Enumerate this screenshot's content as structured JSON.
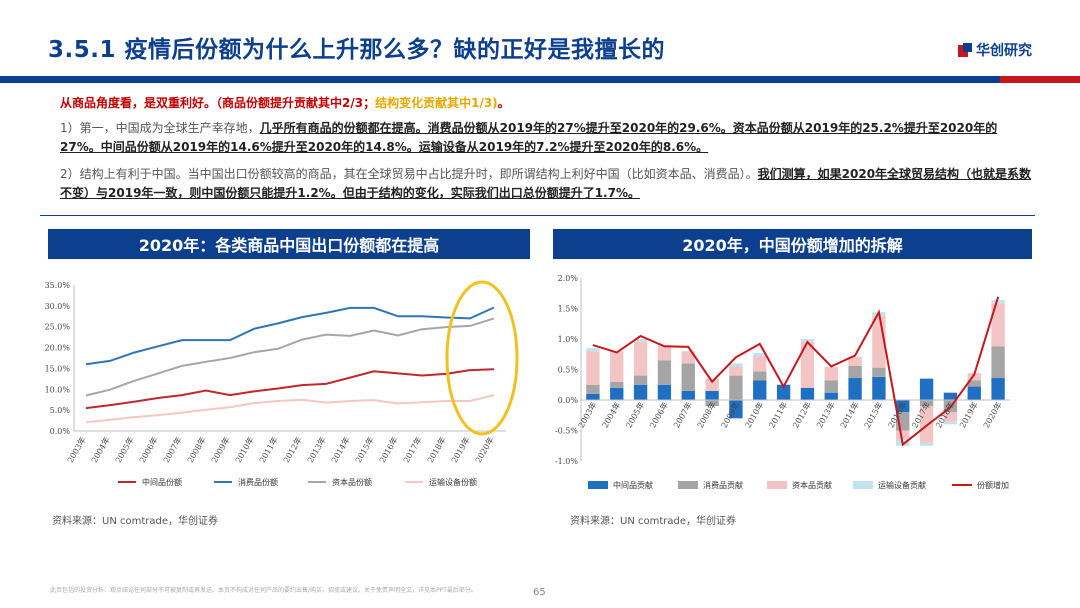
{
  "header": {
    "title": "3.5.1 疫情后份额为什么上升那么多？缺的正好是我擅长的",
    "logo_text": "华创研究"
  },
  "summary": {
    "lead": {
      "a": "从商品角度看，是双重利好。（商品份额提升贡献其中2/3；",
      "b": "结构变化贡献其中1/3)",
      "c": "。"
    },
    "para1": {
      "a": "1）第一，中国成为全球生产幸存地，",
      "b": "几乎所有商品的份额都在提高。消费品份额从2019年的27%提升至2020年的29.6%。资本品份额从2019年的25.2%提升至2020年的27%。中间品份额从2019年的14.6%提升至2020年的14.8%。运输设备从2019年的7.2%提升至2020年的8.6%。"
    },
    "para2": {
      "a": "2）结构上有利于中国。当中国出口份额较高的商品，其在全球贸易中占比提升时，即所谓结构上利好中国（比如资本品、消费品）。",
      "b": "我们测算，如果2020年全球贸易结构（",
      "c": "也就是系数不变",
      "d": "）与2019年一致，则中国份额只能提升1.2%。但由于结构的变化，实际我们出口总份额提升了1.7%。"
    }
  },
  "left_panel": {
    "title": "2020年：各类商品中国出口份额都在提高",
    "source": "资料来源：UN comtrade，华创证券"
  },
  "right_panel": {
    "title": "2020年，中国份额增加的拆解",
    "source": "资料来源：UN comtrade，华创证券"
  },
  "footer": {
    "disclaimer": "此页包括的投资分析、观点结论任何部分不可被复制或再发送。本页不构成对任何产品的要约出售/购买、招揽或建议。关于免责声明全文，详见本PPT最后部分。",
    "page": "65"
  },
  "colors": {
    "brand": "#0c3f8d",
    "red": "#c8161d",
    "gold": "#f2c01f",
    "line_mid": "#c0282d",
    "line_cons": "#2e75b6",
    "line_cap": "#a6a6a6",
    "line_trans": "#f4c7c3",
    "bar_mid": "#1f6fc2",
    "bar_cons": "#a5a5a5",
    "bar_cap": "#f3c4c4",
    "bar_trans": "#bfe3ef"
  },
  "chart_data": [
    {
      "type": "line",
      "title": "2020年：各类商品中国出口份额都在提高",
      "categories": [
        "2003年",
        "2004年",
        "2005年",
        "2006年",
        "2007年",
        "2008年",
        "2009年",
        "2010年",
        "2011年",
        "2012年",
        "2013年",
        "2014年",
        "2015年",
        "2016年",
        "2017年",
        "2018年",
        "2019年",
        "2020年"
      ],
      "yticks": [
        "0.0%",
        "5.0%",
        "10.0%",
        "15.0%",
        "20.0%",
        "25.0%",
        "30.0%",
        "35.0%"
      ],
      "ylim": [
        0,
        35
      ],
      "series": [
        {
          "name": "中间品份额",
          "color": "#c0282d",
          "values": [
            5.5,
            6.2,
            7.0,
            7.9,
            8.6,
            9.7,
            8.6,
            9.5,
            10.2,
            11.0,
            11.3,
            12.8,
            14.3,
            13.8,
            13.3,
            13.7,
            14.6,
            14.8
          ]
        },
        {
          "name": "消费品份额",
          "color": "#2e75b6",
          "values": [
            16.0,
            16.8,
            18.8,
            20.3,
            21.8,
            21.8,
            21.8,
            24.5,
            25.8,
            27.3,
            28.3,
            29.5,
            29.5,
            27.5,
            27.5,
            27.2,
            27.0,
            29.6
          ]
        },
        {
          "name": "资本品份额",
          "color": "#a6a6a6",
          "values": [
            8.5,
            9.9,
            12.0,
            13.8,
            15.6,
            16.6,
            17.5,
            18.9,
            19.7,
            21.9,
            23.1,
            22.8,
            24.1,
            22.9,
            24.4,
            24.9,
            25.2,
            27.0
          ]
        },
        {
          "name": "运输设备份额",
          "color": "#f4c7c3",
          "values": [
            2.1,
            2.7,
            3.3,
            3.8,
            4.4,
            5.1,
            5.7,
            6.7,
            7.2,
            7.5,
            6.8,
            7.2,
            7.4,
            6.6,
            6.9,
            7.2,
            7.2,
            8.6
          ]
        }
      ],
      "annotation": "highlight ellipse on 2019年–2020年"
    },
    {
      "type": "bar",
      "stacked": true,
      "title": "2020年，中国份额增加的拆解",
      "categories": [
        "2003年",
        "2004年",
        "2005年",
        "2006年",
        "2007年",
        "2008年",
        "2009年",
        "2010年",
        "2011年",
        "2012年",
        "2013年",
        "2014年",
        "2015年",
        "2016年",
        "2017年",
        "2018年",
        "2019年",
        "2020年"
      ],
      "yticks": [
        "2.0%",
        "1.5%",
        "1.0%",
        "0.5%",
        "0.0%",
        "-0.5%",
        "-1.0%"
      ],
      "ylim": [
        -1.0,
        2.0
      ],
      "series": [
        {
          "name": "中间品贡献",
          "color": "#1f6fc2",
          "values": [
            0.1,
            0.2,
            0.25,
            0.25,
            0.15,
            0.15,
            -0.3,
            0.32,
            0.25,
            0.2,
            0.12,
            0.36,
            0.38,
            -0.2,
            0.35,
            0.12,
            0.22,
            0.36
          ]
        },
        {
          "name": "消费品贡献",
          "color": "#a5a5a5",
          "values": [
            0.15,
            0.1,
            0.15,
            0.4,
            0.45,
            -0.1,
            0.4,
            0.15,
            0.0,
            0.0,
            0.2,
            0.2,
            0.15,
            -0.3,
            -0.1,
            -0.2,
            0.1,
            0.52
          ]
        },
        {
          "name": "资本品贡献",
          "color": "#f3c4c4",
          "values": [
            0.55,
            0.5,
            0.55,
            0.25,
            0.2,
            0.2,
            0.15,
            0.25,
            0.0,
            0.75,
            0.22,
            0.15,
            0.85,
            -0.15,
            -0.6,
            -0.15,
            0.12,
            0.7
          ]
        },
        {
          "name": "运输设备贡献",
          "color": "#bfe3ef",
          "values": [
            0.05,
            0.0,
            0.05,
            0.0,
            0.0,
            0.0,
            0.05,
            0.05,
            0.0,
            0.05,
            0.0,
            0.0,
            0.06,
            -0.1,
            -0.05,
            -0.05,
            0.0,
            0.06
          ]
        },
        {
          "name": "份额增加",
          "color": "#c8161d",
          "type": "line",
          "values": [
            0.9,
            0.78,
            1.05,
            0.88,
            0.87,
            0.3,
            0.7,
            0.92,
            0.22,
            0.95,
            0.55,
            0.73,
            1.44,
            -0.73,
            -0.42,
            -0.12,
            0.42,
            1.69
          ]
        }
      ]
    }
  ]
}
